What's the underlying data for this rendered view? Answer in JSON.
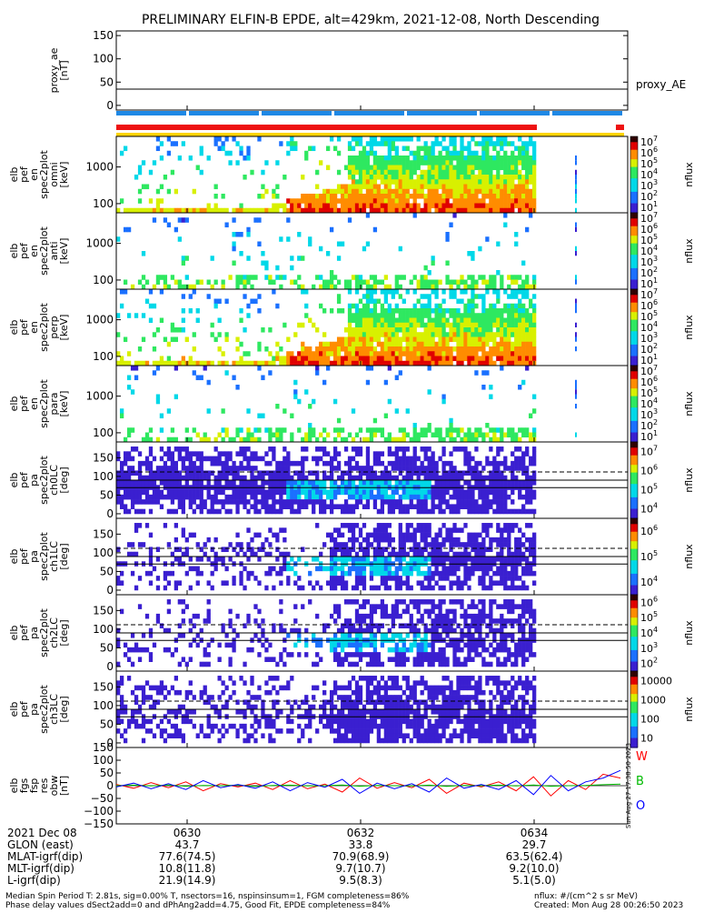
{
  "title": "PRELIMINARY ELFIN-B EPDE, alt=429km, 2021-12-08, North Descending",
  "chart_data": [
    {
      "type": "line",
      "panel": "proxy_ae",
      "ylabel_lines": [
        "proxy_ae",
        "[nT]"
      ],
      "right_label": "proxy_AE",
      "yticks": [
        "150",
        "100",
        "50",
        "0"
      ],
      "ylim": [
        -10,
        160
      ],
      "series": [
        {
          "x": [
            0,
            1
          ],
          "values": [
            35,
            35
          ]
        }
      ],
      "grid": false
    },
    {
      "type": "heatmap",
      "panel": "elb pef en spec2plot omni",
      "ylabel_lines": [
        "elb",
        "pef",
        "en",
        "spec2plot",
        "omni",
        "[keV]"
      ],
      "yticks": [
        "1000",
        "100"
      ],
      "scale": "log",
      "colorbar": {
        "label": "nflux",
        "ticks": [
          "10^7",
          "10^6",
          "10^5",
          "10^4",
          "10^3",
          "10^2",
          "10^1"
        ]
      }
    },
    {
      "type": "heatmap",
      "panel": "elb pef en spec2plot anti",
      "ylabel_lines": [
        "elb",
        "pef",
        "en",
        "spec2plot",
        "anti",
        "[keV]"
      ],
      "yticks": [
        "1000",
        "100"
      ],
      "scale": "log",
      "colorbar": {
        "label": "nflux",
        "ticks": [
          "10^7",
          "10^6",
          "10^5",
          "10^4",
          "10^3",
          "10^2",
          "10^1"
        ]
      }
    },
    {
      "type": "heatmap",
      "panel": "elb pef en spec2plot perp",
      "ylabel_lines": [
        "elb",
        "pef",
        "en",
        "spec2plot",
        "perp",
        "[keV]"
      ],
      "yticks": [
        "1000",
        "100"
      ],
      "scale": "log",
      "colorbar": {
        "label": "nflux",
        "ticks": [
          "10^7",
          "10^6",
          "10^5",
          "10^4",
          "10^3",
          "10^2",
          "10^1"
        ]
      }
    },
    {
      "type": "heatmap",
      "panel": "elb pef en spec2plot para",
      "ylabel_lines": [
        "elb",
        "pef",
        "en",
        "spec2plot",
        "para",
        "[keV]"
      ],
      "yticks": [
        "1000",
        "100"
      ],
      "scale": "log",
      "colorbar": {
        "label": "nflux",
        "ticks": [
          "10^7",
          "10^6",
          "10^5",
          "10^4",
          "10^3",
          "10^2",
          "10^1"
        ]
      }
    },
    {
      "type": "heatmap",
      "panel": "elb pef pa spec2plot ch0LC",
      "ylabel_lines": [
        "elb",
        "pef",
        "pa",
        "spec2plot",
        "ch0LC",
        "[deg]"
      ],
      "yticks": [
        "150",
        "100",
        "50",
        "0"
      ],
      "colorbar": {
        "label": "nflux",
        "ticks": [
          "10^7",
          "10^6",
          "10^5",
          "10^4"
        ]
      }
    },
    {
      "type": "heatmap",
      "panel": "elb pef pa spec2plot ch1LC",
      "ylabel_lines": [
        "elb",
        "pef",
        "pa",
        "spec2plot",
        "ch1LC",
        "[deg]"
      ],
      "yticks": [
        "150",
        "100",
        "50",
        "0"
      ],
      "colorbar": {
        "label": "nflux",
        "ticks": [
          "10^6",
          "10^5",
          "10^4"
        ]
      }
    },
    {
      "type": "heatmap",
      "panel": "elb pef pa spec2plot ch2LC",
      "ylabel_lines": [
        "elb",
        "pef",
        "pa",
        "spec2plot",
        "ch2LC",
        "[deg]"
      ],
      "yticks": [
        "150",
        "100",
        "50",
        "0"
      ],
      "colorbar": {
        "label": "nflux",
        "ticks": [
          "10^6",
          "10^5",
          "10^4",
          "10^3",
          "10^2"
        ]
      }
    },
    {
      "type": "heatmap",
      "panel": "elb pef pa spec2plot ch3LC",
      "ylabel_lines": [
        "elb",
        "pef",
        "pa",
        "spec2plot",
        "ch3LC",
        "[deg]"
      ],
      "yticks": [
        "150",
        "100",
        "50",
        "0"
      ],
      "colorbar": {
        "label": "nflux",
        "ticks": [
          "10000",
          "1000",
          "100",
          "10"
        ]
      }
    },
    {
      "type": "line",
      "panel": "elb fgs fsp res obw",
      "ylabel_lines": [
        "elb",
        "fgs",
        "fsp",
        "res",
        "obw",
        "[nT]"
      ],
      "yticks": [
        "150",
        "100",
        "50",
        "0",
        "−50",
        "−100",
        "−150"
      ],
      "ylim": [
        -150,
        150
      ],
      "series": [
        {
          "name": "W",
          "color": "#ff0000",
          "values": [
            5,
            -10,
            12,
            -8,
            15,
            -20,
            8,
            -5,
            10,
            -15,
            20,
            -12,
            6,
            -25,
            30,
            -10,
            12,
            -8,
            25,
            -30,
            10,
            -5,
            15,
            -20,
            35,
            -40,
            20,
            -15,
            45,
            30
          ]
        },
        {
          "name": "B",
          "color": "#00bb00",
          "values": [
            0,
            2,
            -1,
            3,
            -2,
            1,
            0,
            2,
            -3,
            1,
            2,
            -1,
            0,
            3,
            -2,
            1,
            0,
            -1,
            2,
            -3,
            1,
            0,
            2,
            -1,
            3,
            -2,
            0,
            1,
            4,
            6
          ]
        },
        {
          "name": "O",
          "color": "#0000ff",
          "values": [
            -5,
            10,
            -12,
            8,
            -15,
            20,
            -8,
            5,
            -10,
            15,
            -20,
            12,
            -6,
            25,
            -30,
            10,
            -12,
            8,
            -25,
            30,
            -10,
            5,
            -15,
            20,
            -35,
            40,
            -20,
            15,
            30,
            60
          ]
        }
      ],
      "side_note": "Sun Aug 27 17:38:50 2023",
      "grid": false
    }
  ],
  "bars": {
    "blue": "#1e88e5",
    "red": "#ee1111",
    "yellow": "#ffd400"
  },
  "xaxis": {
    "ticks": [
      "0630",
      "0632",
      "0634"
    ]
  },
  "ephemeris": {
    "rows": [
      {
        "label": "2021 Dec 08",
        "values": [
          "0630",
          "0632",
          "0634"
        ]
      },
      {
        "label": "GLON (east)",
        "values": [
          "43.7",
          "33.8",
          "29.7"
        ]
      },
      {
        "label": "MLAT-igrf(dip)",
        "values": [
          "77.6(74.5)",
          "70.9(68.9)",
          "63.5(62.4)"
        ]
      },
      {
        "label": "MLT-igrf(dip)",
        "values": [
          "10.8(11.8)",
          "9.7(10.7)",
          "9.2(10.0)"
        ]
      },
      {
        "label": "L-igrf(dip)",
        "values": [
          "21.9(14.9)",
          "9.5(8.3)",
          "5.1(5.0)"
        ]
      }
    ]
  },
  "footer": {
    "line1": "Median Spin Period T: 2.81s, sig=0.00% T, nsectors=16, nspinsinsum=1, FGM completeness=86%",
    "line2": "Phase delay values dSect2add=0 and dPhAng2add=4.75, Good Fit, EPDE completeness=84%",
    "right1": "nflux: #/(cm^2 s sr MeV)",
    "right2": "Created: Mon Aug 28 00:26:50 2023"
  }
}
